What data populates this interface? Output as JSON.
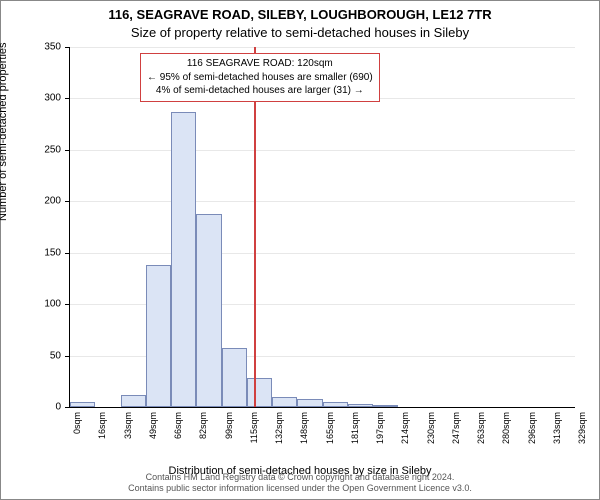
{
  "chart": {
    "type": "histogram",
    "title_line1": "116, SEAGRAVE ROAD, SILEBY, LOUGHBOROUGH, LE12 7TR",
    "title_line2": "Size of property relative to semi-detached houses in Sileby",
    "ylabel": "Number of semi-detached properties",
    "xlabel": "Distribution of semi-detached houses by size in Sileby",
    "ylim_max": 350,
    "ytick_step": 50,
    "yticks": [
      0,
      50,
      100,
      150,
      200,
      250,
      300,
      350
    ],
    "xticks": [
      "0sqm",
      "16sqm",
      "33sqm",
      "49sqm",
      "66sqm",
      "82sqm",
      "99sqm",
      "115sqm",
      "132sqm",
      "148sqm",
      "165sqm",
      "181sqm",
      "197sqm",
      "214sqm",
      "230sqm",
      "247sqm",
      "263sqm",
      "280sqm",
      "296sqm",
      "313sqm",
      "329sqm"
    ],
    "bars": [
      {
        "x_index": 0,
        "value": 5
      },
      {
        "x_index": 1,
        "value": 0
      },
      {
        "x_index": 2,
        "value": 12
      },
      {
        "x_index": 3,
        "value": 138
      },
      {
        "x_index": 4,
        "value": 287
      },
      {
        "x_index": 5,
        "value": 188
      },
      {
        "x_index": 6,
        "value": 57
      },
      {
        "x_index": 7,
        "value": 28
      },
      {
        "x_index": 8,
        "value": 10
      },
      {
        "x_index": 9,
        "value": 8
      },
      {
        "x_index": 10,
        "value": 5
      },
      {
        "x_index": 11,
        "value": 3
      },
      {
        "x_index": 12,
        "value": 1
      },
      {
        "x_index": 13,
        "value": 0
      },
      {
        "x_index": 14,
        "value": 0
      },
      {
        "x_index": 15,
        "value": 0
      },
      {
        "x_index": 16,
        "value": 0
      },
      {
        "x_index": 17,
        "value": 0
      },
      {
        "x_index": 18,
        "value": 0
      },
      {
        "x_index": 19,
        "value": 0
      }
    ],
    "bar_fill": "#dbe4f5",
    "bar_border": "#7a8bb8",
    "marker_x_value": 120,
    "marker_x_min": 0,
    "marker_x_max": 329,
    "marker_color": "#d04040",
    "grid_color": "#e8e8e8",
    "background_color": "#ffffff",
    "info_box": {
      "line1": "116 SEAGRAVE ROAD: 120sqm",
      "line2": "← 95% of semi-detached houses are smaller (690)",
      "line3": "4% of semi-detached houses are larger (31) →"
    },
    "footer1": "Contains HM Land Registry data © Crown copyright and database right 2024.",
    "footer2": "Contains public sector information licensed under the Open Government Licence v3.0.",
    "title_fontsize": 13,
    "label_fontsize": 11,
    "tick_fontsize": 10
  }
}
